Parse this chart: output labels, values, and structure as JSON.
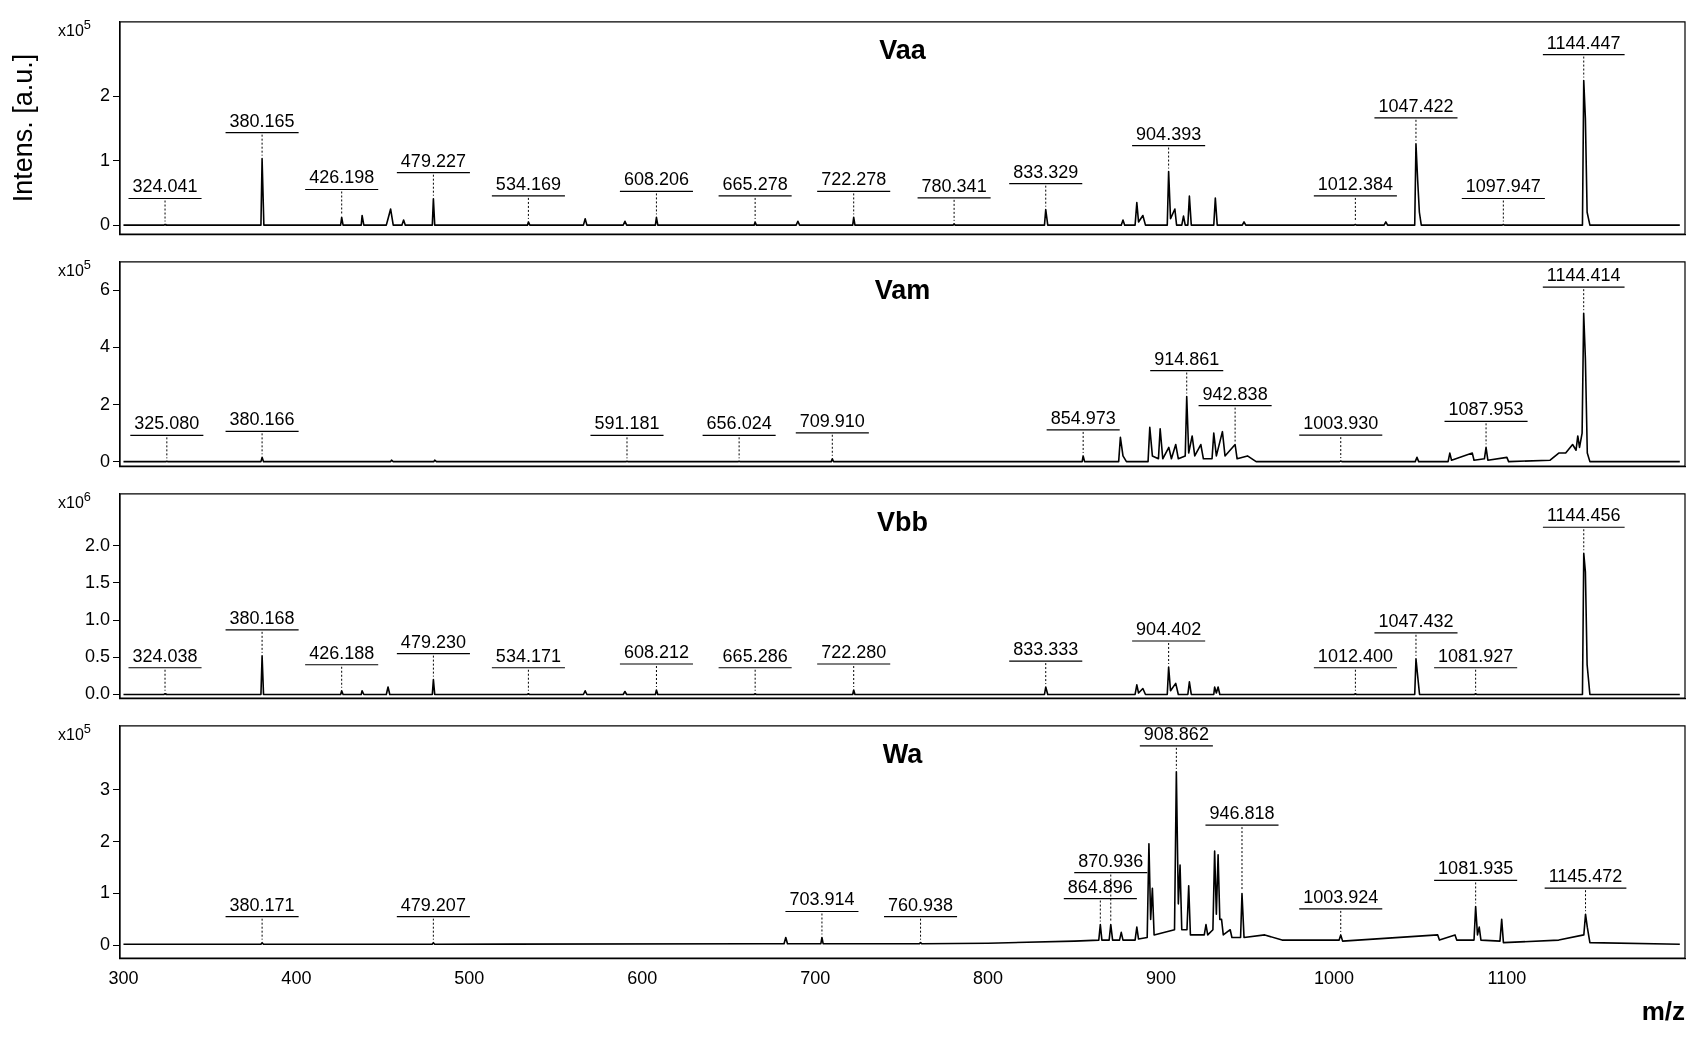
{
  "chart_data": [
    {
      "type": "line",
      "title": "Vaa",
      "ylabel": "Intens. [a.u.]",
      "color": "#000000",
      "tick_labels": "y",
      "xlim": [
        298,
        1203
      ],
      "xticks": [
        300,
        400,
        500,
        600,
        700,
        800,
        900,
        1000,
        1100
      ],
      "ylim": [
        -0.14,
        3.15
      ],
      "yticks": [
        0,
        1,
        2
      ],
      "x": [
        300,
        323.5,
        324.041,
        324.6,
        379.5,
        380.165,
        381.2,
        425.6,
        426.198,
        427,
        437.5,
        438,
        439,
        452,
        453,
        454.5,
        456,
        461,
        462,
        463,
        478.6,
        479.227,
        480,
        533.6,
        534.169,
        535,
        566,
        567,
        568,
        589,
        590,
        591,
        607.6,
        608.206,
        609,
        664.7,
        665.278,
        666,
        689,
        690,
        691,
        721.7,
        722.278,
        723,
        779.7,
        780.341,
        781,
        832.6,
        833.329,
        834.5,
        877,
        878,
        879,
        885,
        886,
        887,
        889.5,
        891,
        903.6,
        904.393,
        905.5,
        908,
        909,
        912,
        913,
        914,
        915.5,
        916.4,
        917.5,
        930.5,
        931.4,
        932.5,
        947,
        948,
        949,
        1011.7,
        1012.384,
        1013,
        1029,
        1030,
        1031,
        1046.7,
        1047.422,
        1048.4,
        1049.4,
        1050.5,
        1097.3,
        1097.947,
        1098.6,
        1143.7,
        1144.447,
        1145.4,
        1146.4,
        1148,
        1200
      ],
      "values": [
        0,
        0,
        0.01,
        0,
        0,
        1.03,
        0,
        0,
        0.12,
        0,
        0,
        0.15,
        0,
        0,
        0.1,
        0.25,
        0,
        0,
        0.08,
        0,
        0,
        0.41,
        0,
        0,
        0.05,
        0,
        0,
        0.1,
        0,
        0,
        0.06,
        0,
        0,
        0.12,
        0,
        0,
        0.05,
        0,
        0,
        0.06,
        0,
        0,
        0.12,
        0,
        0,
        0.02,
        0,
        0,
        0.24,
        0,
        0,
        0.08,
        0,
        0,
        0.35,
        0.05,
        0.15,
        0,
        0,
        0.83,
        0.1,
        0.25,
        0,
        0,
        0.14,
        0,
        0,
        0.45,
        0,
        0,
        0.42,
        0,
        0,
        0.05,
        0,
        0,
        0.01,
        0,
        0,
        0.05,
        0,
        0,
        1.26,
        0.7,
        0.2,
        0,
        0,
        0.01,
        0,
        0,
        2.24,
        1.65,
        0.2,
        0,
        0
      ],
      "annotations": [
        "x10$^{5}$",
        {
          "text": "324.041",
          "x": 324.041,
          "y": 0.01
        },
        {
          "text": "380.165",
          "x": 380.165,
          "y": 1.03
        },
        {
          "text": "426.198",
          "x": 426.198,
          "y": 0.12
        },
        {
          "text": "479.227",
          "x": 479.227,
          "y": 0.41
        },
        {
          "text": "534.169",
          "x": 534.169,
          "y": 0.05
        },
        {
          "text": "608.206",
          "x": 608.206,
          "y": 0.12
        },
        {
          "text": "665.278",
          "x": 665.278,
          "y": 0.05
        },
        {
          "text": "722.278",
          "x": 722.278,
          "y": 0.12
        },
        {
          "text": "780.341",
          "x": 780.341,
          "y": 0.02
        },
        {
          "text": "833.329",
          "x": 833.329,
          "y": 0.24
        },
        {
          "text": "904.393",
          "x": 904.393,
          "y": 0.83
        },
        {
          "text": "1012.384",
          "x": 1012.384,
          "y": 0.01
        },
        {
          "text": "1047.422",
          "x": 1047.422,
          "y": 1.26
        },
        {
          "text": "1097.947",
          "x": 1097.947,
          "y": 0.01
        },
        {
          "text": "1144.447",
          "x": 1144.447,
          "y": 2.24
        }
      ]
    },
    {
      "type": "line",
      "title": "Vam",
      "color": "#000000",
      "tick_labels": "y",
      "xlim": [
        298,
        1203
      ],
      "xticks": [
        300,
        400,
        500,
        600,
        700,
        800,
        900,
        1000,
        1100
      ],
      "ylim": [
        -0.16,
        7.0
      ],
      "yticks": [
        0,
        2,
        4,
        6
      ],
      "x": [
        300,
        324.5,
        325.08,
        325.7,
        379.5,
        380.166,
        381,
        454.5,
        455,
        456,
        479.5,
        480,
        481,
        590.6,
        591.181,
        591.8,
        655.4,
        656.024,
        656.6,
        709.3,
        709.91,
        710.6,
        854.4,
        854.973,
        855.8,
        875.5,
        876.5,
        878,
        880,
        892.5,
        893.5,
        895,
        898.5,
        899.5,
        901,
        904.5,
        906,
        908.5,
        910,
        914,
        914.861,
        916,
        918,
        919.5,
        923,
        924.5,
        929.5,
        930.5,
        932,
        935.5,
        937,
        942.838,
        944,
        950,
        955,
        1003.3,
        1003.93,
        1004.6,
        1047,
        1048,
        1049,
        1066,
        1067,
        1068,
        1080,
        1081,
        1087,
        1087.953,
        1089,
        1100,
        1101,
        1125,
        1130,
        1134,
        1138,
        1140,
        1141,
        1142,
        1143.5,
        1144.414,
        1145.4,
        1146.5,
        1148,
        1200
      ],
      "values": [
        0,
        0,
        0.01,
        0,
        0,
        0.15,
        0,
        0,
        0.05,
        0,
        0,
        0.05,
        0,
        0,
        0.01,
        0,
        0,
        0.01,
        0,
        0,
        0.1,
        0,
        0,
        0.2,
        0,
        0,
        0.85,
        0.2,
        0,
        0,
        1.2,
        0.2,
        0.1,
        1.15,
        0.1,
        0.5,
        0.1,
        0.6,
        0.1,
        0.2,
        2.28,
        0.3,
        0.9,
        0.2,
        0.6,
        0.1,
        0.1,
        1.0,
        0.2,
        1.05,
        0.2,
        0.6,
        0.1,
        0.2,
        0,
        0,
        0.02,
        0,
        0,
        0.15,
        0,
        0,
        0.3,
        0.05,
        0.3,
        0.05,
        0.1,
        0.5,
        0.05,
        0.15,
        0,
        0.05,
        0.3,
        0.3,
        0.6,
        0.4,
        0.9,
        0.5,
        1,
        5.2,
        3.6,
        0.3,
        0,
        0
      ],
      "annotations": [
        "x10$^{5}$",
        {
          "text": "325.080",
          "x": 325.08,
          "y": 0.01
        },
        {
          "text": "380.166",
          "x": 380.166,
          "y": 0.15
        },
        {
          "text": "591.181",
          "x": 591.181,
          "y": 0.01
        },
        {
          "text": "656.024",
          "x": 656.024,
          "y": 0.01
        },
        {
          "text": "709.910",
          "x": 709.91,
          "y": 0.1
        },
        {
          "text": "854.973",
          "x": 854.973,
          "y": 0.2
        },
        {
          "text": "914.861",
          "x": 914.861,
          "y": 2.28
        },
        {
          "text": "942.838",
          "x": 942.838,
          "y": 0.6
        },
        {
          "text": "1003.930",
          "x": 1003.93,
          "y": 0.02
        },
        {
          "text": "1087.953",
          "x": 1087.953,
          "y": 0.5
        },
        {
          "text": "1144.414",
          "x": 1144.414,
          "y": 5.2
        }
      ]
    },
    {
      "type": "line",
      "title": "Vbb",
      "color": "#000000",
      "tick_labels": "y",
      "xlim": [
        298,
        1203
      ],
      "xticks": [
        300,
        400,
        500,
        600,
        700,
        800,
        900,
        1000,
        1100
      ],
      "ylim": [
        -0.05,
        2.7
      ],
      "yticks": [
        {
          "value": 0,
          "label": "0.0"
        },
        {
          "value": 0.5,
          "label": "0.5"
        },
        {
          "value": 1,
          "label": "1.0"
        },
        {
          "value": 1.5,
          "label": "1.5"
        },
        {
          "value": 2,
          "label": "2.0"
        }
      ],
      "x": [
        300,
        323.5,
        324.038,
        324.6,
        379.5,
        380.168,
        381,
        425.6,
        426.188,
        427,
        437.5,
        438,
        439,
        452,
        453,
        454,
        478.6,
        479.23,
        480,
        533.6,
        534.171,
        534.8,
        566,
        567,
        568,
        589,
        590,
        591,
        607.6,
        608.212,
        609,
        664.7,
        665.286,
        665.9,
        721.7,
        722.28,
        723,
        832.6,
        833.333,
        834.5,
        885,
        886,
        887,
        889.5,
        891,
        903.6,
        904.402,
        905.5,
        908.5,
        910,
        915.5,
        916.4,
        917.5,
        930.5,
        931,
        932,
        933,
        934,
        1011.7,
        1012.4,
        1013,
        1046.7,
        1047.432,
        1048.4,
        1049.5,
        1081.3,
        1081.927,
        1082.5,
        1143.7,
        1144.456,
        1145.4,
        1146.4,
        1148,
        1200
      ],
      "values": [
        0,
        0,
        0.01,
        0,
        0,
        0.52,
        0,
        0,
        0.05,
        0,
        0,
        0.05,
        0,
        0,
        0.1,
        0,
        0,
        0.2,
        0,
        0,
        0.01,
        0,
        0,
        0.05,
        0,
        0,
        0.04,
        0,
        0,
        0.06,
        0,
        0,
        0.01,
        0,
        0,
        0.06,
        0,
        0,
        0.1,
        0,
        0,
        0.13,
        0.02,
        0.08,
        0,
        0,
        0.37,
        0.05,
        0.15,
        0,
        0,
        0.17,
        0,
        0,
        0.1,
        0.02,
        0.1,
        0,
        0,
        0.01,
        0,
        0,
        0.48,
        0.25,
        0,
        0,
        0.01,
        0,
        0,
        1.9,
        1.65,
        0.4,
        0,
        0
      ],
      "annotations": [
        "x10$^{6}$",
        {
          "text": "324.038",
          "x": 324.038,
          "y": 0.01
        },
        {
          "text": "380.168",
          "x": 380.168,
          "y": 0.52
        },
        {
          "text": "426.188",
          "x": 426.188,
          "y": 0.05
        },
        {
          "text": "479.230",
          "x": 479.23,
          "y": 0.2
        },
        {
          "text": "534.171",
          "x": 534.171,
          "y": 0.01
        },
        {
          "text": "608.212",
          "x": 608.212,
          "y": 0.06
        },
        {
          "text": "665.286",
          "x": 665.286,
          "y": 0.01
        },
        {
          "text": "722.280",
          "x": 722.28,
          "y": 0.06
        },
        {
          "text": "833.333",
          "x": 833.333,
          "y": 0.1
        },
        {
          "text": "904.402",
          "x": 904.402,
          "y": 0.37
        },
        {
          "text": "1012.400",
          "x": 1012.4,
          "y": 0.01
        },
        {
          "text": "1047.432",
          "x": 1047.432,
          "y": 0.48
        },
        {
          "text": "1081.927",
          "x": 1081.927,
          "y": 0.01
        },
        {
          "text": "1144.456",
          "x": 1144.456,
          "y": 1.9
        }
      ]
    },
    {
      "type": "line",
      "title": "Wa",
      "xlabel": "m/z",
      "color": "#000000",
      "xlim": [
        298,
        1203
      ],
      "xticks": [
        300,
        400,
        500,
        600,
        700,
        800,
        900,
        1000,
        1100
      ],
      "ylim": [
        -0.25,
        4.24
      ],
      "yticks": [
        0,
        1,
        2,
        3
      ],
      "x": [
        300,
        379.5,
        380.171,
        381,
        478.5,
        479.207,
        480,
        682,
        683,
        684,
        703.3,
        703.914,
        704.6,
        760.3,
        760.938,
        761.6,
        800,
        850,
        864,
        864.896,
        865.8,
        870,
        870.936,
        872,
        876,
        877,
        878,
        885,
        886,
        887,
        892,
        893,
        894,
        895,
        896,
        907.8,
        908.862,
        910,
        911,
        912,
        915,
        916,
        917,
        925,
        926,
        927,
        930,
        931,
        932,
        933,
        934,
        935,
        936,
        940,
        941,
        946,
        946.818,
        948,
        960,
        970,
        1003,
        1003.924,
        1005,
        1060,
        1061,
        1070,
        1071,
        1081,
        1081.935,
        1083,
        1084,
        1085,
        1096,
        1097,
        1098,
        1130,
        1144.5,
        1145.472,
        1146.5,
        1148,
        1200
      ],
      "values": [
        0.02,
        0.02,
        0.05,
        0.02,
        0.02,
        0.05,
        0.02,
        0.03,
        0.15,
        0.03,
        0.03,
        0.15,
        0.03,
        0.03,
        0.05,
        0.03,
        0.04,
        0.08,
        0.1,
        0.4,
        0.1,
        0.1,
        0.4,
        0.1,
        0.1,
        0.25,
        0.1,
        0.1,
        0.35,
        0.12,
        0.15,
        1.96,
        0.5,
        1.1,
        0.2,
        0.3,
        3.35,
        0.8,
        1.55,
        0.3,
        0.3,
        1.15,
        0.2,
        0.2,
        0.4,
        0.2,
        0.3,
        1.82,
        0.6,
        1.75,
        0.5,
        0.5,
        0.2,
        0.3,
        0.15,
        0.15,
        1.0,
        0.15,
        0.2,
        0.1,
        0.1,
        0.2,
        0.08,
        0.2,
        0.1,
        0.2,
        0.1,
        0.1,
        0.75,
        0.2,
        0.35,
        0.1,
        0.08,
        0.5,
        0.05,
        0.1,
        0.2,
        0.6,
        0.35,
        0.05,
        0.02
      ],
      "annotations": [
        "x10$^{5}$",
        {
          "text": "380.171",
          "x": 380.171,
          "y": 0.05
        },
        {
          "text": "479.207",
          "x": 479.207,
          "y": 0.05
        },
        {
          "text": "703.914",
          "x": 703.914,
          "y": 0.15
        },
        {
          "text": "760.938",
          "x": 760.938,
          "y": 0.05
        },
        {
          "text": "864.896",
          "x": 864.896,
          "y": 0.4
        },
        {
          "text": "870.936",
          "x": 870.936,
          "y": 0.4
        },
        {
          "text": "908.862",
          "x": 908.862,
          "y": 3.35
        },
        {
          "text": "946.818",
          "x": 946.818,
          "y": 1.0
        },
        {
          "text": "1003.924",
          "x": 1003.924,
          "y": 0.2
        },
        {
          "text": "1081.935",
          "x": 1081.935,
          "y": 0.75
        },
        {
          "text": "1145.472",
          "x": 1145.472,
          "y": 0.6
        }
      ]
    }
  ]
}
